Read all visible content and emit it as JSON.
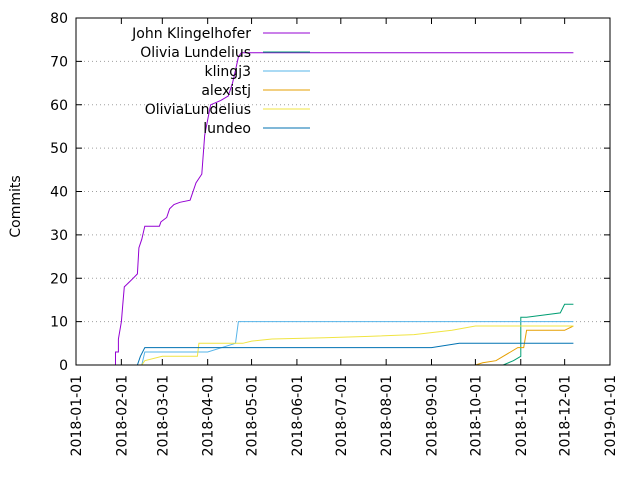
{
  "chart_data": {
    "type": "line",
    "title": "",
    "xlabel": "",
    "ylabel": "Commits",
    "ylim": [
      0,
      80
    ],
    "yticks": [
      0,
      10,
      20,
      30,
      40,
      50,
      60,
      70,
      80
    ],
    "xlim": [
      "2018-01-01",
      "2019-01-01"
    ],
    "xticks": [
      "2018-01-01",
      "2018-02-01",
      "2018-03-01",
      "2018-04-01",
      "2018-05-01",
      "2018-06-01",
      "2018-07-01",
      "2018-08-01",
      "2018-09-01",
      "2018-10-01",
      "2018-11-01",
      "2018-12-01",
      "2019-01-01"
    ],
    "grid": "horizontal dotted",
    "legend_position": "top-left",
    "series": [
      {
        "name": "John Klingelhofer",
        "color": "#9400d3",
        "points": [
          [
            "2018-01-28",
            0
          ],
          [
            "2018-01-28",
            3
          ],
          [
            "2018-01-30",
            3
          ],
          [
            "2018-01-30",
            6
          ],
          [
            "2018-02-01",
            10
          ],
          [
            "2018-02-02",
            14
          ],
          [
            "2018-02-03",
            18
          ],
          [
            "2018-02-06",
            19
          ],
          [
            "2018-02-09",
            20
          ],
          [
            "2018-02-12",
            21
          ],
          [
            "2018-02-13",
            27
          ],
          [
            "2018-02-15",
            29
          ],
          [
            "2018-02-17",
            32
          ],
          [
            "2018-02-27",
            32
          ],
          [
            "2018-02-28",
            33
          ],
          [
            "2018-03-04",
            34
          ],
          [
            "2018-03-06",
            36
          ],
          [
            "2018-03-09",
            37
          ],
          [
            "2018-03-13",
            37.5
          ],
          [
            "2018-03-20",
            38
          ],
          [
            "2018-03-24",
            42
          ],
          [
            "2018-03-28",
            44
          ],
          [
            "2018-03-30",
            53
          ],
          [
            "2018-04-03",
            60
          ],
          [
            "2018-04-10",
            61
          ],
          [
            "2018-04-15",
            62
          ],
          [
            "2018-04-18",
            65
          ],
          [
            "2018-04-20",
            68
          ],
          [
            "2018-04-22",
            71
          ],
          [
            "2018-04-24",
            72
          ],
          [
            "2018-12-07",
            72
          ]
        ]
      },
      {
        "name": "Olivia Lundelius",
        "color": "#009e73",
        "points": [
          [
            "2018-10-02",
            0
          ],
          [
            "2018-10-20",
            0
          ],
          [
            "2018-10-27",
            1
          ],
          [
            "2018-11-01",
            2
          ],
          [
            "2018-11-01",
            11
          ],
          [
            "2018-11-05",
            11
          ],
          [
            "2018-11-28",
            12
          ],
          [
            "2018-12-01",
            14
          ],
          [
            "2018-12-07",
            14
          ]
        ]
      },
      {
        "name": "klingj3",
        "color": "#56b4e9",
        "points": [
          [
            "2018-02-15",
            0
          ],
          [
            "2018-02-17",
            3
          ],
          [
            "2018-04-01",
            3
          ],
          [
            "2018-04-20",
            5
          ],
          [
            "2018-04-22",
            10
          ],
          [
            "2018-12-07",
            10
          ]
        ]
      },
      {
        "name": "alexistj",
        "color": "#e69f00",
        "points": [
          [
            "2018-10-01",
            0
          ],
          [
            "2018-10-06",
            0.5
          ],
          [
            "2018-10-15",
            1
          ],
          [
            "2018-10-20",
            2
          ],
          [
            "2018-10-25",
            3
          ],
          [
            "2018-10-30",
            4
          ],
          [
            "2018-11-03",
            4
          ],
          [
            "2018-11-05",
            8
          ],
          [
            "2018-12-01",
            8
          ],
          [
            "2018-12-07",
            9
          ]
        ]
      },
      {
        "name": "OliviaLundelius",
        "color": "#f0e442",
        "points": [
          [
            "2018-02-15",
            0
          ],
          [
            "2018-02-17",
            1
          ],
          [
            "2018-03-01",
            2
          ],
          [
            "2018-03-25",
            2
          ],
          [
            "2018-03-26",
            5
          ],
          [
            "2018-04-20",
            5
          ],
          [
            "2018-04-25",
            5
          ],
          [
            "2018-05-01",
            5.5
          ],
          [
            "2018-05-15",
            6
          ],
          [
            "2018-06-20",
            6.3
          ],
          [
            "2018-07-20",
            6.6
          ],
          [
            "2018-08-20",
            7
          ],
          [
            "2018-09-15",
            8
          ],
          [
            "2018-10-01",
            9
          ],
          [
            "2018-11-01",
            9
          ],
          [
            "2018-12-07",
            9
          ]
        ]
      },
      {
        "name": "lundeo",
        "color": "#0072b2",
        "points": [
          [
            "2018-02-12",
            0
          ],
          [
            "2018-02-14",
            2
          ],
          [
            "2018-02-17",
            4
          ],
          [
            "2018-09-01",
            4
          ],
          [
            "2018-09-20",
            5
          ],
          [
            "2018-12-07",
            5
          ]
        ]
      }
    ]
  }
}
